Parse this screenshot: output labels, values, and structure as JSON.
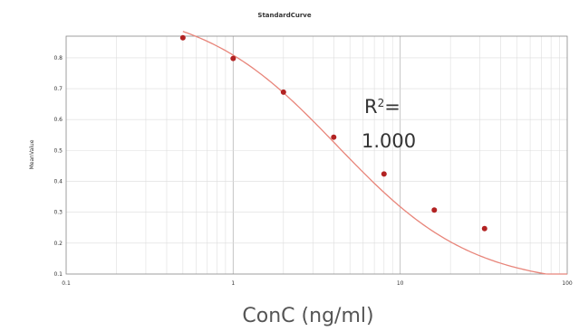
{
  "chart_data": {
    "type": "scatter",
    "title": "StandardCurve",
    "xlabel": "ConC (ng/ml)",
    "ylabel": "MeanValue",
    "x_scale": "log",
    "xlim": [
      0.1,
      100
    ],
    "ylim": [
      0.1,
      0.87
    ],
    "x_ticks": [
      "0.1",
      "1",
      "10",
      "100"
    ],
    "y_ticks": [
      "0.1",
      "0.2",
      "0.3",
      "0.4",
      "0.5",
      "0.6",
      "0.7",
      "0.8"
    ],
    "grid": true,
    "series": [
      {
        "color": "#b22222",
        "x": [
          0.5,
          1,
          2,
          4,
          8,
          16,
          32
        ],
        "y": [
          0.865,
          0.798,
          0.689,
          0.543,
          0.424,
          0.307,
          0.247
        ]
      }
    ],
    "fit_curve": {
      "color": "#e8857a",
      "model": "4PL",
      "params": {
        "top": 0.97,
        "bottom": 0.06,
        "ec50": 4.2,
        "hill": 1.07
      },
      "x_range": [
        0.5,
        100
      ]
    },
    "annotation": {
      "r2_label_base": "R",
      "r2_label_sup": "2",
      "r2_label_eq": "=",
      "r2_value": "1.000"
    }
  }
}
